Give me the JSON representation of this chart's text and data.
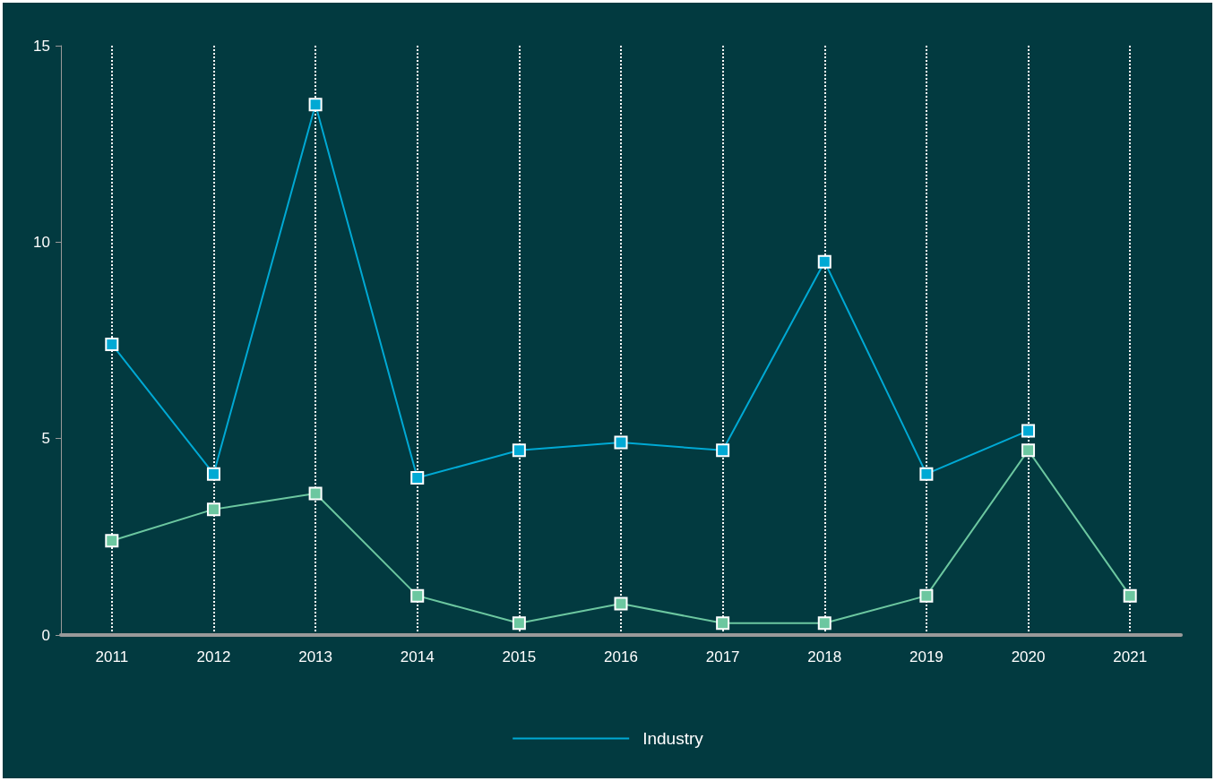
{
  "chart_data": {
    "type": "line",
    "x": [
      2011,
      2012,
      2013,
      2014,
      2015,
      2016,
      2017,
      2018,
      2019,
      2020,
      2021
    ],
    "series": [
      {
        "name": "Industry",
        "color": "#00a9d4",
        "values": [
          7.4,
          4.1,
          13.5,
          4.0,
          4.7,
          4.9,
          4.7,
          9.5,
          4.1,
          5.2,
          null
        ]
      },
      {
        "color": "#6cc7a0",
        "values": [
          2.4,
          3.2,
          3.6,
          1.0,
          0.3,
          0.8,
          0.3,
          0.3,
          1.0,
          4.7,
          1.0
        ]
      }
    ],
    "xlim": [
      2010.5,
      2021.5
    ],
    "xticks": [
      2011,
      2012,
      2013,
      2014,
      2015,
      2016,
      2017,
      2018,
      2019,
      2020,
      2021
    ],
    "ylim": [
      0,
      15
    ],
    "yticks": [
      0,
      5,
      10,
      15
    ],
    "grid": "x",
    "legend": "bottom",
    "marker": "square",
    "line_style": "solid"
  }
}
